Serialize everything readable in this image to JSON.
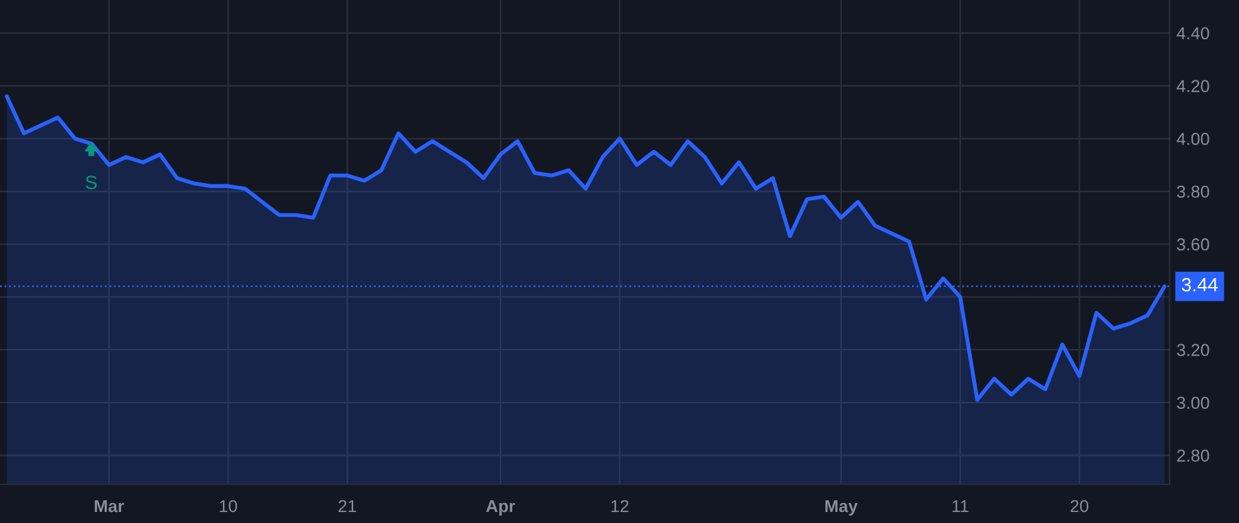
{
  "chart_data": {
    "type": "area",
    "categories": [
      null,
      null,
      null,
      null,
      null,
      null,
      "Mar",
      null,
      null,
      null,
      null,
      null,
      null,
      "10",
      null,
      null,
      null,
      null,
      null,
      null,
      "21",
      null,
      null,
      null,
      null,
      null,
      null,
      null,
      null,
      "Apr",
      null,
      null,
      null,
      null,
      null,
      null,
      "12",
      null,
      null,
      null,
      null,
      null,
      null,
      null,
      null,
      null,
      null,
      null,
      null,
      "May",
      null,
      null,
      null,
      null,
      null,
      null,
      "11",
      null,
      null,
      null,
      null,
      null,
      null,
      "20",
      null,
      null,
      null,
      null,
      null
    ],
    "series": [
      {
        "color": "#2962ff",
        "values": [
          4.16,
          4.02,
          4.05,
          4.08,
          4.0,
          3.98,
          3.9,
          3.93,
          3.91,
          3.94,
          3.85,
          3.83,
          3.82,
          3.82,
          3.81,
          3.76,
          3.71,
          3.71,
          3.7,
          3.86,
          3.86,
          3.84,
          3.88,
          4.02,
          3.95,
          3.99,
          3.95,
          3.91,
          3.85,
          3.94,
          3.99,
          3.87,
          3.86,
          3.88,
          3.81,
          3.93,
          4.0,
          3.9,
          3.95,
          3.9,
          3.99,
          3.93,
          3.83,
          3.91,
          3.81,
          3.85,
          3.63,
          3.77,
          3.78,
          3.7,
          3.76,
          3.67,
          3.64,
          3.61,
          3.39,
          3.47,
          3.4,
          3.01,
          3.09,
          3.03,
          3.09,
          3.05,
          3.22,
          3.1,
          3.34,
          3.28,
          3.3,
          3.33,
          3.44
        ]
      }
    ],
    "ylim": [
      2.69,
      4.525
    ],
    "yticks": [
      {
        "value": 2.8,
        "label": "2.80"
      },
      {
        "value": 3.0,
        "label": "3.00"
      },
      {
        "value": 3.2,
        "label": "3.20"
      },
      {
        "value": 3.4,
        "label": null
      },
      {
        "value": 3.6,
        "label": "3.60"
      },
      {
        "value": 3.8,
        "label": "3.80"
      },
      {
        "value": 4.0,
        "label": "4.00"
      },
      {
        "value": 4.2,
        "label": "4.20"
      },
      {
        "value": 4.4,
        "label": "4.40"
      }
    ],
    "ref_lines": [
      {
        "axis": "y",
        "value": 3.44,
        "label": "3.44",
        "color": "#2962ff",
        "line_style": "dotted"
      }
    ],
    "annotations": [
      "S"
    ],
    "grid": true,
    "legend": false
  }
}
